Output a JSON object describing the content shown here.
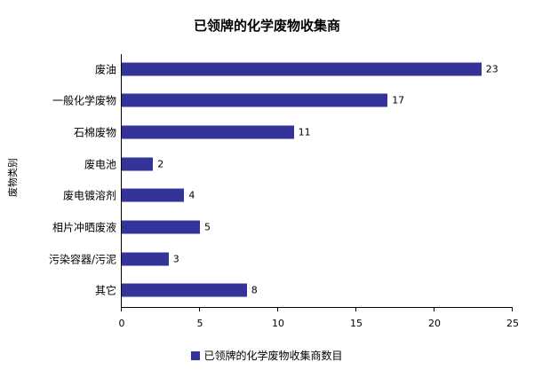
{
  "chart_data": {
    "type": "bar",
    "orientation": "horizontal",
    "title": "已领牌的化学废物收集商",
    "xlabel": "",
    "ylabel": "废物类别",
    "categories": [
      "废油",
      "一般化学废物",
      "石棉废物",
      "废电池",
      "废电镀溶剂",
      "相片冲晒废液",
      "污染容器/污泥",
      "其它"
    ],
    "series": [
      {
        "name": "已领牌的化学废物收集商数目",
        "values": [
          23,
          17,
          11,
          2,
          4,
          5,
          3,
          8
        ],
        "color": "#333399"
      }
    ],
    "xlim": [
      0,
      25
    ],
    "xticks": [
      "0",
      "5",
      "10",
      "15",
      "20",
      "25"
    ],
    "grid": false,
    "legend_position": "bottom",
    "data_labels": true
  },
  "colors": {
    "bar": "#333399"
  }
}
